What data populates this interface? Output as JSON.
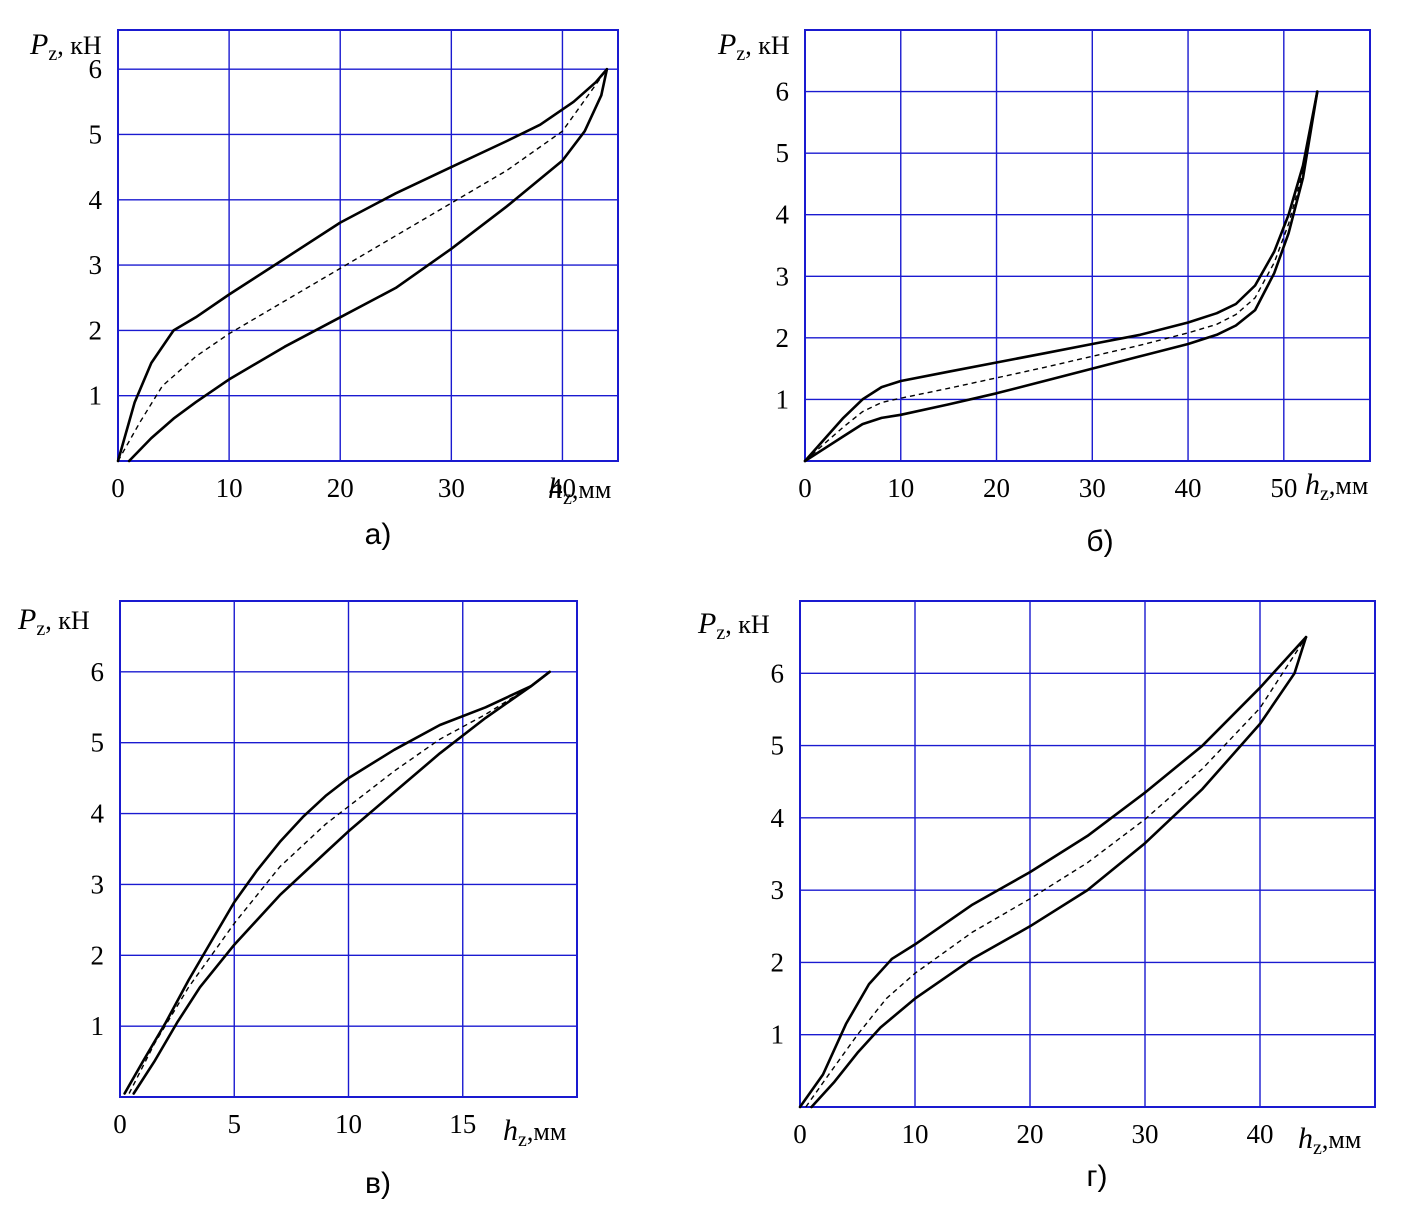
{
  "chart_data": [
    {
      "type": "line",
      "caption": "а)",
      "y_label": {
        "var": "P",
        "sub": "z",
        "unit": ", кН"
      },
      "x_label": {
        "var": "h",
        "sub": "z",
        "unit": ",мм"
      },
      "xlim": [
        0,
        45
      ],
      "ylim": [
        0,
        6.6
      ],
      "x_ticks": [
        0,
        10,
        20,
        30,
        40
      ],
      "y_ticks": [
        1,
        2,
        3,
        4,
        5,
        6
      ],
      "grid": true,
      "series": [
        {
          "style": "solid",
          "x": [
            0,
            1.5,
            3,
            5,
            7,
            10,
            15,
            20,
            25,
            30,
            35,
            38,
            41,
            43,
            44
          ],
          "y": [
            0,
            0.9,
            1.5,
            2.0,
            2.2,
            2.55,
            3.1,
            3.65,
            4.1,
            4.5,
            4.9,
            5.15,
            5.5,
            5.8,
            6.0
          ]
        },
        {
          "style": "solid",
          "x": [
            1,
            3,
            5,
            7,
            10,
            15,
            20,
            25,
            30,
            35,
            40,
            42,
            43.5,
            44
          ],
          "y": [
            0,
            0.35,
            0.65,
            0.9,
            1.25,
            1.75,
            2.2,
            2.65,
            3.25,
            3.9,
            4.6,
            5.05,
            5.6,
            6.0
          ]
        },
        {
          "style": "dashed",
          "x": [
            0,
            2,
            4,
            7,
            10,
            15,
            20,
            25,
            30,
            35,
            40,
            44
          ],
          "y": [
            0,
            0.6,
            1.15,
            1.6,
            1.95,
            2.45,
            2.95,
            3.45,
            3.95,
            4.45,
            5.05,
            6.0
          ]
        }
      ]
    },
    {
      "type": "line",
      "caption": "б)",
      "y_label": {
        "var": "P",
        "sub": "z",
        "unit": ", кН"
      },
      "x_label": {
        "var": "h",
        "sub": "z",
        "unit": ",мм"
      },
      "xlim": [
        0,
        59
      ],
      "ylim": [
        0,
        7
      ],
      "x_ticks": [
        0,
        10,
        20,
        30,
        40,
        50
      ],
      "y_ticks": [
        1,
        2,
        3,
        4,
        5,
        6
      ],
      "grid": true,
      "series": [
        {
          "style": "solid",
          "x": [
            0,
            2,
            4,
            6,
            8,
            10,
            15,
            20,
            25,
            30,
            35,
            40,
            43,
            45,
            47,
            49,
            50.5,
            52,
            53.5
          ],
          "y": [
            0,
            0.35,
            0.7,
            1.0,
            1.2,
            1.3,
            1.45,
            1.6,
            1.75,
            1.9,
            2.05,
            2.25,
            2.4,
            2.55,
            2.85,
            3.4,
            4.0,
            4.8,
            6.0
          ]
        },
        {
          "style": "solid",
          "x": [
            0,
            2,
            4,
            6,
            8,
            10,
            15,
            20,
            25,
            30,
            35,
            40,
            43,
            45,
            47,
            49,
            50.5,
            52,
            53.5
          ],
          "y": [
            0,
            0.2,
            0.4,
            0.6,
            0.7,
            0.75,
            0.92,
            1.1,
            1.3,
            1.5,
            1.7,
            1.9,
            2.05,
            2.2,
            2.45,
            3.05,
            3.7,
            4.6,
            6.0
          ]
        },
        {
          "style": "dashed",
          "x": [
            0,
            2,
            4,
            6,
            8,
            10,
            15,
            20,
            25,
            30,
            35,
            40,
            43,
            45,
            47,
            49,
            50.5,
            52,
            53.5
          ],
          "y": [
            0,
            0.28,
            0.55,
            0.8,
            0.95,
            1.02,
            1.18,
            1.35,
            1.52,
            1.7,
            1.88,
            2.08,
            2.22,
            2.38,
            2.65,
            3.22,
            3.85,
            4.7,
            6.0
          ]
        }
      ]
    },
    {
      "type": "line",
      "caption": "в)",
      "y_label": {
        "var": "P",
        "sub": "z",
        "unit": ", кН"
      },
      "x_label": {
        "var": "h",
        "sub": "z",
        "unit": ",мм"
      },
      "xlim": [
        0,
        20
      ],
      "ylim": [
        0,
        7
      ],
      "x_ticks": [
        0,
        5,
        10,
        15
      ],
      "y_ticks": [
        1,
        2,
        3,
        4,
        5,
        6
      ],
      "grid": true,
      "series": [
        {
          "style": "solid",
          "x": [
            0.2,
            1,
            2,
            3,
            4,
            5,
            6,
            7,
            8,
            9,
            10,
            12,
            14,
            16,
            18,
            18.8
          ],
          "y": [
            0.05,
            0.5,
            1.05,
            1.65,
            2.2,
            2.75,
            3.2,
            3.6,
            3.95,
            4.25,
            4.5,
            4.9,
            5.25,
            5.5,
            5.8,
            6.0
          ]
        },
        {
          "style": "solid",
          "x": [
            0.6,
            1.5,
            2.5,
            3.5,
            5,
            7,
            9,
            10,
            12,
            14,
            16,
            18,
            18.8
          ],
          "y": [
            0.05,
            0.5,
            1.05,
            1.55,
            2.15,
            2.85,
            3.45,
            3.75,
            4.3,
            4.85,
            5.35,
            5.8,
            6.0
          ]
        },
        {
          "style": "dashed",
          "x": [
            0.4,
            1.5,
            3,
            5,
            7,
            9,
            10,
            12,
            14,
            16,
            18,
            18.8
          ],
          "y": [
            0.05,
            0.75,
            1.55,
            2.45,
            3.25,
            3.85,
            4.1,
            4.6,
            5.05,
            5.4,
            5.8,
            6.0
          ]
        }
      ]
    },
    {
      "type": "line",
      "caption": "г)",
      "y_label": {
        "var": "P",
        "sub": "z",
        "unit": ", кН"
      },
      "x_label": {
        "var": "h",
        "sub": "z",
        "unit": ",мм"
      },
      "xlim": [
        0,
        50
      ],
      "ylim": [
        0,
        7
      ],
      "x_ticks": [
        0,
        10,
        20,
        30,
        40
      ],
      "y_ticks": [
        1,
        2,
        3,
        4,
        5,
        6
      ],
      "grid": true,
      "series": [
        {
          "style": "solid",
          "x": [
            0,
            2,
            4,
            6,
            8,
            10,
            15,
            20,
            25,
            30,
            35,
            40,
            44
          ],
          "y": [
            0,
            0.45,
            1.15,
            1.7,
            2.05,
            2.25,
            2.8,
            3.25,
            3.75,
            4.35,
            5.0,
            5.8,
            6.5
          ]
        },
        {
          "style": "solid",
          "x": [
            1,
            3,
            5,
            7,
            10,
            15,
            20,
            25,
            30,
            35,
            40,
            43,
            44
          ],
          "y": [
            0,
            0.35,
            0.75,
            1.1,
            1.5,
            2.05,
            2.5,
            3.0,
            3.65,
            4.4,
            5.3,
            6.0,
            6.5
          ]
        },
        {
          "style": "dashed",
          "x": [
            0.5,
            2.5,
            5,
            7.5,
            10,
            15,
            20,
            25,
            30,
            35,
            40,
            44
          ],
          "y": [
            0,
            0.45,
            1.0,
            1.5,
            1.85,
            2.42,
            2.88,
            3.38,
            3.98,
            4.68,
            5.52,
            6.5
          ]
        }
      ]
    }
  ]
}
